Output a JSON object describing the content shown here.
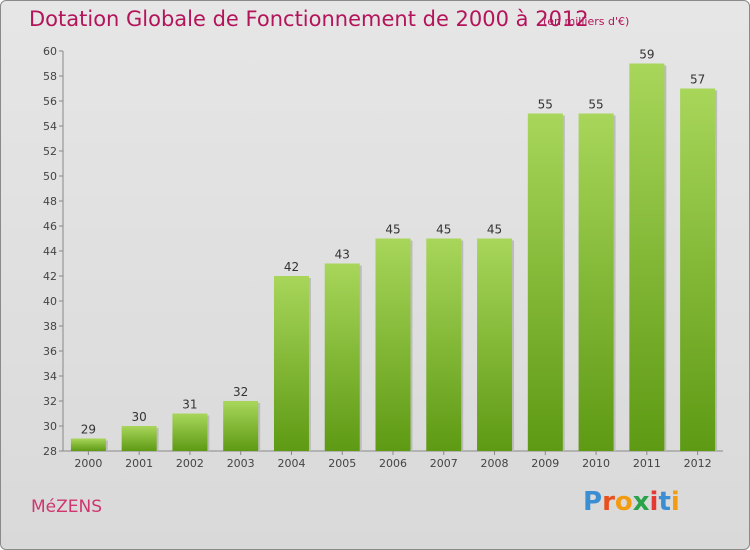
{
  "header": {
    "title": "Dotation Globale de Fonctionnement de 2000 à 2012",
    "subtitle": "(en milliers d'€)"
  },
  "footer": {
    "commune": "MéZENS",
    "logo": {
      "letters": [
        "P",
        "r",
        "o",
        "x",
        "i",
        "t",
        "i"
      ],
      "colors": [
        "#3a8fd4",
        "#e8501e",
        "#f39c12",
        "#2aa34a",
        "#e53935",
        "#3a8fd4",
        "#f39c12"
      ]
    }
  },
  "colors": {
    "bar_light": "#a8d65a",
    "bar_dark": "#5e9a14",
    "title": "#b4145a"
  },
  "chart_data": {
    "type": "bar",
    "categories": [
      "2000",
      "2001",
      "2002",
      "2003",
      "2004",
      "2005",
      "2006",
      "2007",
      "2008",
      "2009",
      "2010",
      "2011",
      "2012"
    ],
    "values": [
      29,
      30,
      31,
      32,
      42,
      43,
      45,
      45,
      45,
      55,
      55,
      59,
      57
    ],
    "ylim": [
      28,
      60
    ],
    "yticks": [
      28,
      30,
      32,
      34,
      36,
      38,
      40,
      42,
      44,
      46,
      48,
      50,
      52,
      54,
      56,
      58,
      60
    ],
    "grid": false,
    "title": "Dotation Globale de Fonctionnement de 2000 à 2012",
    "xlabel": "",
    "ylabel": ""
  }
}
